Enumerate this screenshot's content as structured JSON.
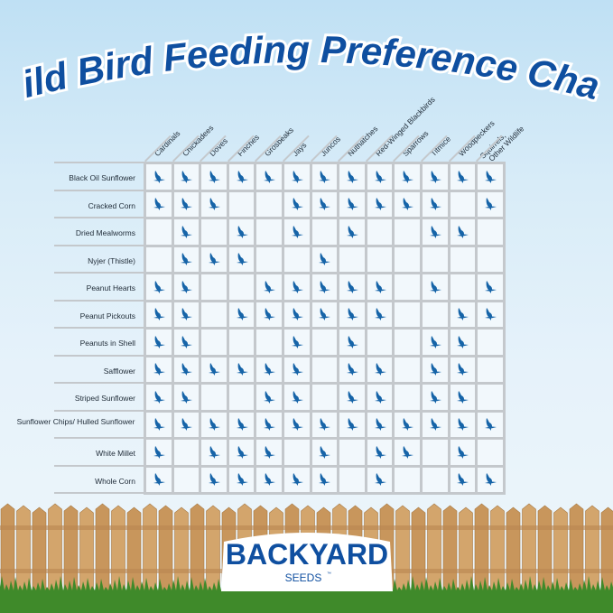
{
  "chart_data": {
    "type": "table",
    "title": "Wild Bird Feeding Preference Chart",
    "columns": [
      "Cardinals",
      "Chickadees",
      "Doves",
      "Finches",
      "Grosbeaks",
      "Jays",
      "Juncos",
      "Nuthatches",
      "Red-Winged Blackbirds",
      "Sparrows",
      "Titmice",
      "Woodpeckers",
      "Squirrels, Other Wildlife"
    ],
    "rows": [
      {
        "label": "Black Oil Sunflower",
        "values": [
          1,
          1,
          1,
          1,
          1,
          1,
          1,
          1,
          1,
          1,
          1,
          1,
          1
        ]
      },
      {
        "label": "Cracked Corn",
        "values": [
          1,
          1,
          1,
          0,
          0,
          1,
          1,
          1,
          1,
          1,
          1,
          0,
          1
        ]
      },
      {
        "label": "Dried Mealworms",
        "values": [
          0,
          1,
          0,
          1,
          0,
          1,
          0,
          1,
          0,
          0,
          1,
          1,
          0
        ]
      },
      {
        "label": "Nyjer (Thistle)",
        "values": [
          0,
          1,
          1,
          1,
          0,
          0,
          1,
          0,
          0,
          0,
          0,
          0,
          0
        ]
      },
      {
        "label": "Peanut Hearts",
        "values": [
          1,
          1,
          0,
          0,
          1,
          1,
          1,
          1,
          1,
          0,
          1,
          0,
          1
        ]
      },
      {
        "label": "Peanut Pickouts",
        "values": [
          1,
          1,
          0,
          1,
          1,
          1,
          1,
          1,
          1,
          0,
          0,
          1,
          1
        ]
      },
      {
        "label": "Peanuts in Shell",
        "values": [
          1,
          1,
          0,
          0,
          0,
          1,
          0,
          1,
          0,
          0,
          1,
          1,
          0
        ]
      },
      {
        "label": "Safflower",
        "values": [
          1,
          1,
          1,
          1,
          1,
          1,
          0,
          1,
          1,
          0,
          1,
          1,
          0
        ]
      },
      {
        "label": "Striped Sunflower",
        "values": [
          1,
          1,
          0,
          0,
          1,
          1,
          0,
          1,
          1,
          0,
          1,
          1,
          0
        ]
      },
      {
        "label": "Sunflower Chips/ Hulled Sunflower",
        "values": [
          1,
          1,
          1,
          1,
          1,
          1,
          1,
          1,
          1,
          1,
          1,
          1,
          1
        ]
      },
      {
        "label": "White Millet",
        "values": [
          1,
          0,
          1,
          1,
          1,
          0,
          1,
          0,
          1,
          1,
          0,
          1,
          0
        ]
      },
      {
        "label": "Whole Corn",
        "values": [
          1,
          0,
          1,
          1,
          1,
          1,
          1,
          0,
          1,
          0,
          0,
          1,
          1
        ]
      }
    ],
    "marker_icon": "bird-icon",
    "marker_color": "#1664a8",
    "grid_color": "#c4c8cc"
  },
  "brand": {
    "name": "BACKYARD",
    "sub": "SEEDS",
    "tm": "™"
  },
  "colors": {
    "title": "#0f4fa0",
    "brand": "#0f4fa0"
  }
}
